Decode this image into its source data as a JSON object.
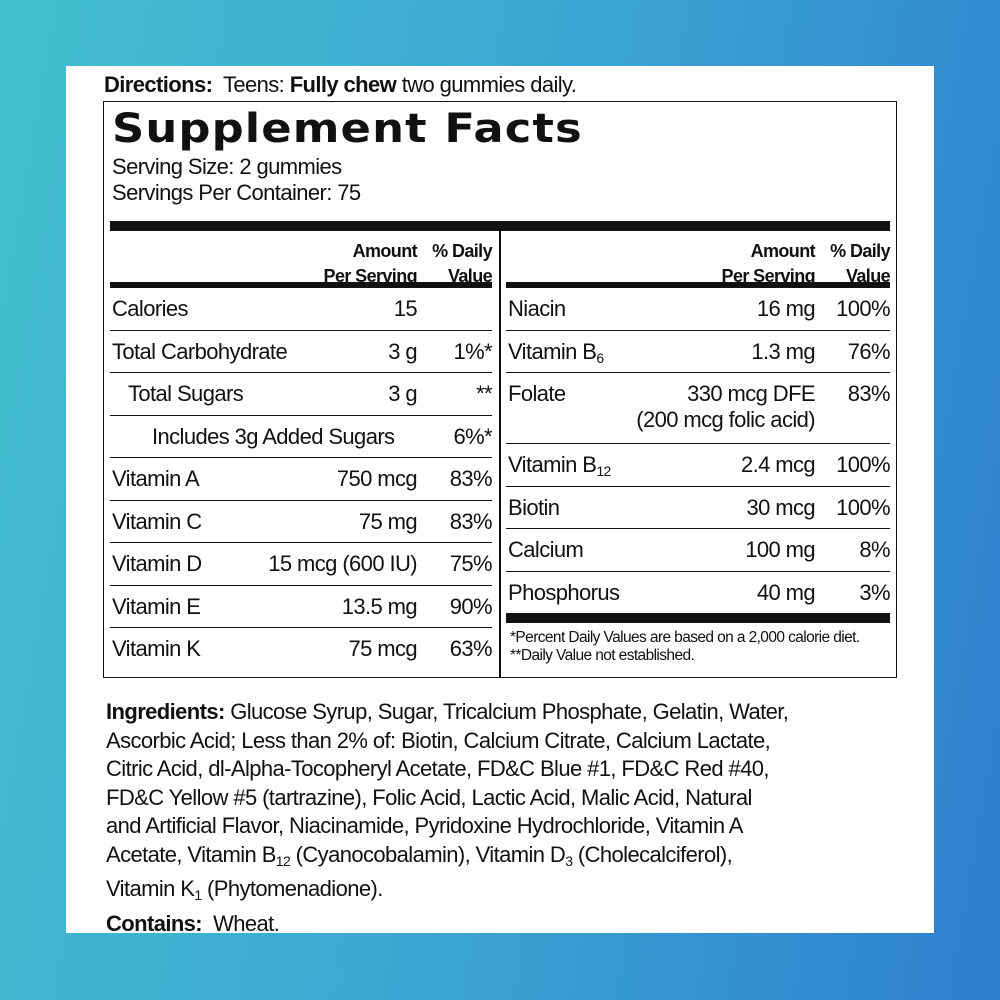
{
  "directions": {
    "label": "Directions:",
    "text1": "Teens:",
    "bold": "Fully chew",
    "text2": "two gummies daily."
  },
  "title": "Supplement Facts",
  "serving_size": "Serving Size:  2 gummies",
  "servings_per_container": "Servings Per Container: 75",
  "header": {
    "amount1": "Amount",
    "amount2": "Per Serving",
    "dv1": "% Daily",
    "dv2": "Value"
  },
  "left_rows": [
    {
      "name": "Calories",
      "amount": "15",
      "dv": ""
    },
    {
      "name": "Total Carbohydrate",
      "amount": "3 g",
      "dv": "1%*"
    },
    {
      "name": "Total Sugars",
      "amount": "3 g",
      "dv": "**"
    },
    {
      "name": "Includes 3g Added Sugars",
      "amount": "",
      "dv": "6%*"
    },
    {
      "name": "Vitamin A",
      "amount": "750 mcg",
      "dv": "83%"
    },
    {
      "name": "Vitamin C",
      "amount": "75 mg",
      "dv": "83%"
    },
    {
      "name": "Vitamin D",
      "amount": "15 mcg (600 IU)",
      "dv": "75%"
    },
    {
      "name": "Vitamin E",
      "amount": "13.5 mg",
      "dv": "90%"
    },
    {
      "name": "Vitamin K",
      "amount": "75 mcg",
      "dv": "63%"
    }
  ],
  "right_rows": [
    {
      "name": "Niacin",
      "amount": "16 mg",
      "dv": "100%"
    },
    {
      "name": "Vitamin B",
      "sub": "6",
      "amount": "1.3 mg",
      "dv": "76%"
    },
    {
      "name": "Folate",
      "amount": "330 mcg DFE",
      "amount2": "(200 mcg folic acid)",
      "dv": "83%"
    },
    {
      "name": "Vitamin B",
      "sub": "12",
      "amount": "2.4 mcg",
      "dv": "100%"
    },
    {
      "name": "Biotin",
      "amount": "30 mcg",
      "dv": "100%"
    },
    {
      "name": "Calcium",
      "amount": "100 mg",
      "dv": "8%"
    },
    {
      "name": "Phosphorus",
      "amount": "40 mg",
      "dv": "3%"
    }
  ],
  "footnotes": [
    "*Percent Daily Values are based on a 2,000 calorie diet.",
    "**Daily Value not established."
  ],
  "ingredients": {
    "label": "Ingredients:",
    "l1": " Glucose Syrup, Sugar, Tricalcium Phosphate, Gelatin, Water,",
    "l2": "Ascorbic Acid; Less than 2% of: Biotin, Calcium Citrate, Calcium Lactate,",
    "l3": "Citric Acid, dl-Alpha-Tocopheryl Acetate, FD&C Blue #1, FD&C Red #40,",
    "l4": "FD&C Yellow #5 (tartrazine), Folic Acid, Lactic Acid, Malic Acid, Natural",
    "l5": "and Artificial Flavor, Niacinamide, Pyridoxine Hydrochloride, Vitamin A",
    "l6a": "Acetate, Vitamin B",
    "l6s1": "12",
    "l6b": " (Cyanocobalamin), Vitamin D",
    "l6s2": "3",
    "l6c": " (Cholecalciferol),",
    "l7a": "Vitamin K",
    "l7s": "1",
    "l7b": " (Phytomenadione)."
  },
  "contains": {
    "label": "Contains:",
    "text": "Wheat."
  }
}
